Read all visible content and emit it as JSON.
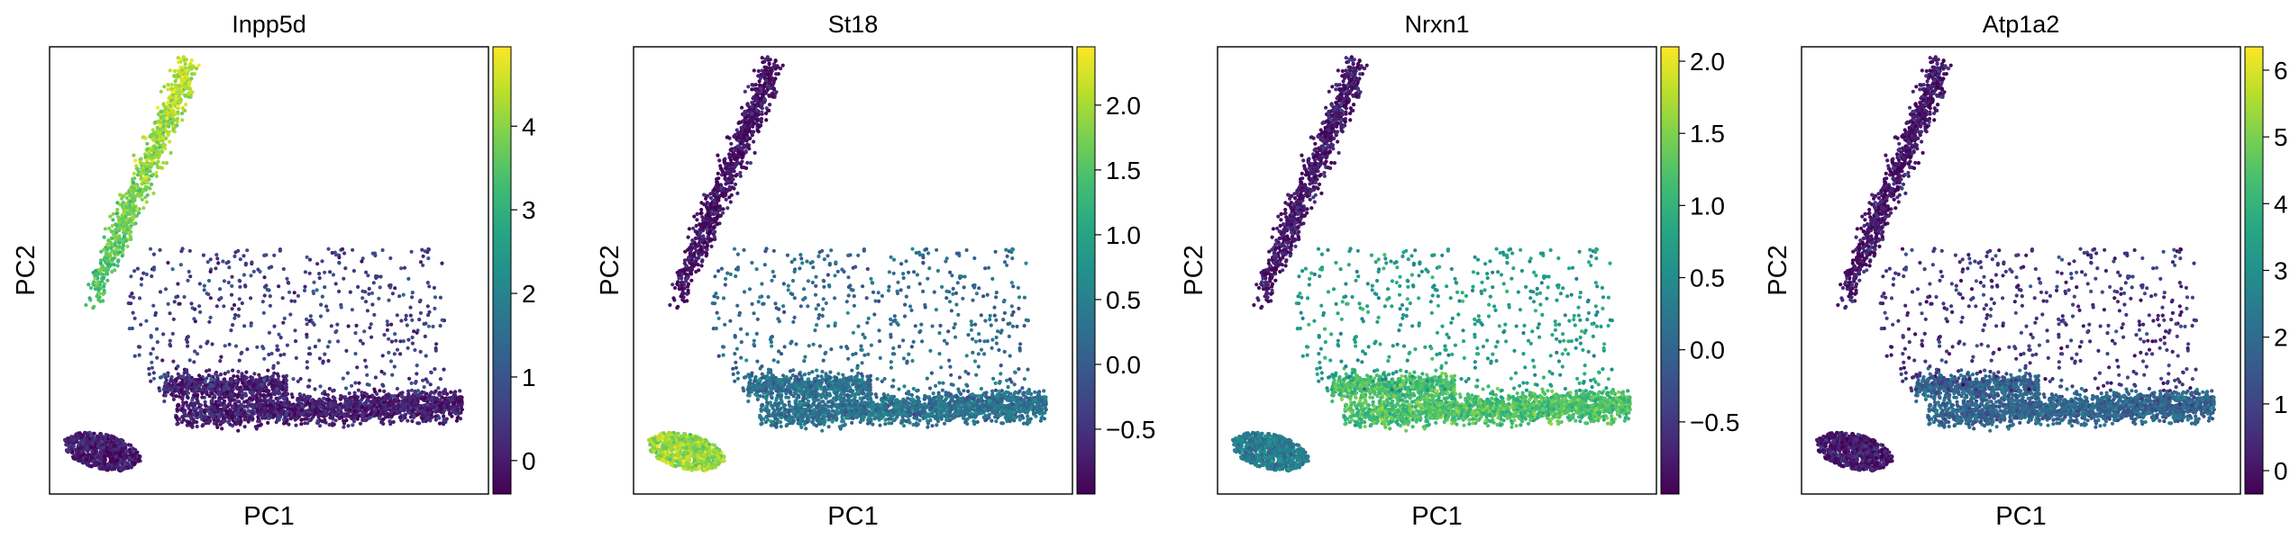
{
  "chart_data": [
    {
      "type": "scatter",
      "title": "Inpp5d",
      "xlabel": "PC1",
      "ylabel": "PC2",
      "colormap": "viridis",
      "colorbar": {
        "ticks": [
          0,
          1,
          2,
          3,
          4
        ],
        "range": [
          -0.4,
          4.95
        ]
      },
      "expression_by_cluster": {
        "microglia_arm": 3.4,
        "horizontal_arms": 0.05,
        "blob": 0.02,
        "scatter": 0.6
      }
    },
    {
      "type": "scatter",
      "title": "St18",
      "xlabel": "PC1",
      "ylabel": "PC2",
      "colormap": "viridis",
      "colorbar": {
        "ticks": [
          -0.5,
          0.0,
          0.5,
          1.0,
          1.5,
          2.0
        ],
        "range": [
          -1.0,
          2.45
        ]
      },
      "expression_by_cluster": {
        "microglia_arm": -0.85,
        "horizontal_arms": 0.3,
        "blob": 1.9,
        "scatter": 0.2
      }
    },
    {
      "type": "scatter",
      "title": "Nrxn1",
      "xlabel": "PC1",
      "ylabel": "PC2",
      "colormap": "viridis",
      "colorbar": {
        "ticks": [
          -0.5,
          0.0,
          0.5,
          1.0,
          1.5,
          2.0
        ],
        "range": [
          -1.0,
          2.1
        ]
      },
      "expression_by_cluster": {
        "microglia_arm": -0.8,
        "horizontal_arms": 1.2,
        "blob": 0.3,
        "scatter": 0.7
      }
    },
    {
      "type": "scatter",
      "title": "Atp1a2",
      "xlabel": "PC1",
      "ylabel": "PC2",
      "colormap": "viridis",
      "colorbar": {
        "ticks": [
          0,
          1,
          2,
          3,
          4,
          5,
          6
        ],
        "range": [
          -0.35,
          6.35
        ]
      },
      "expression_by_cluster": {
        "microglia_arm": 0.0,
        "horizontal_arms": 1.8,
        "blob": 0.1,
        "scatter": 0.6
      }
    }
  ]
}
